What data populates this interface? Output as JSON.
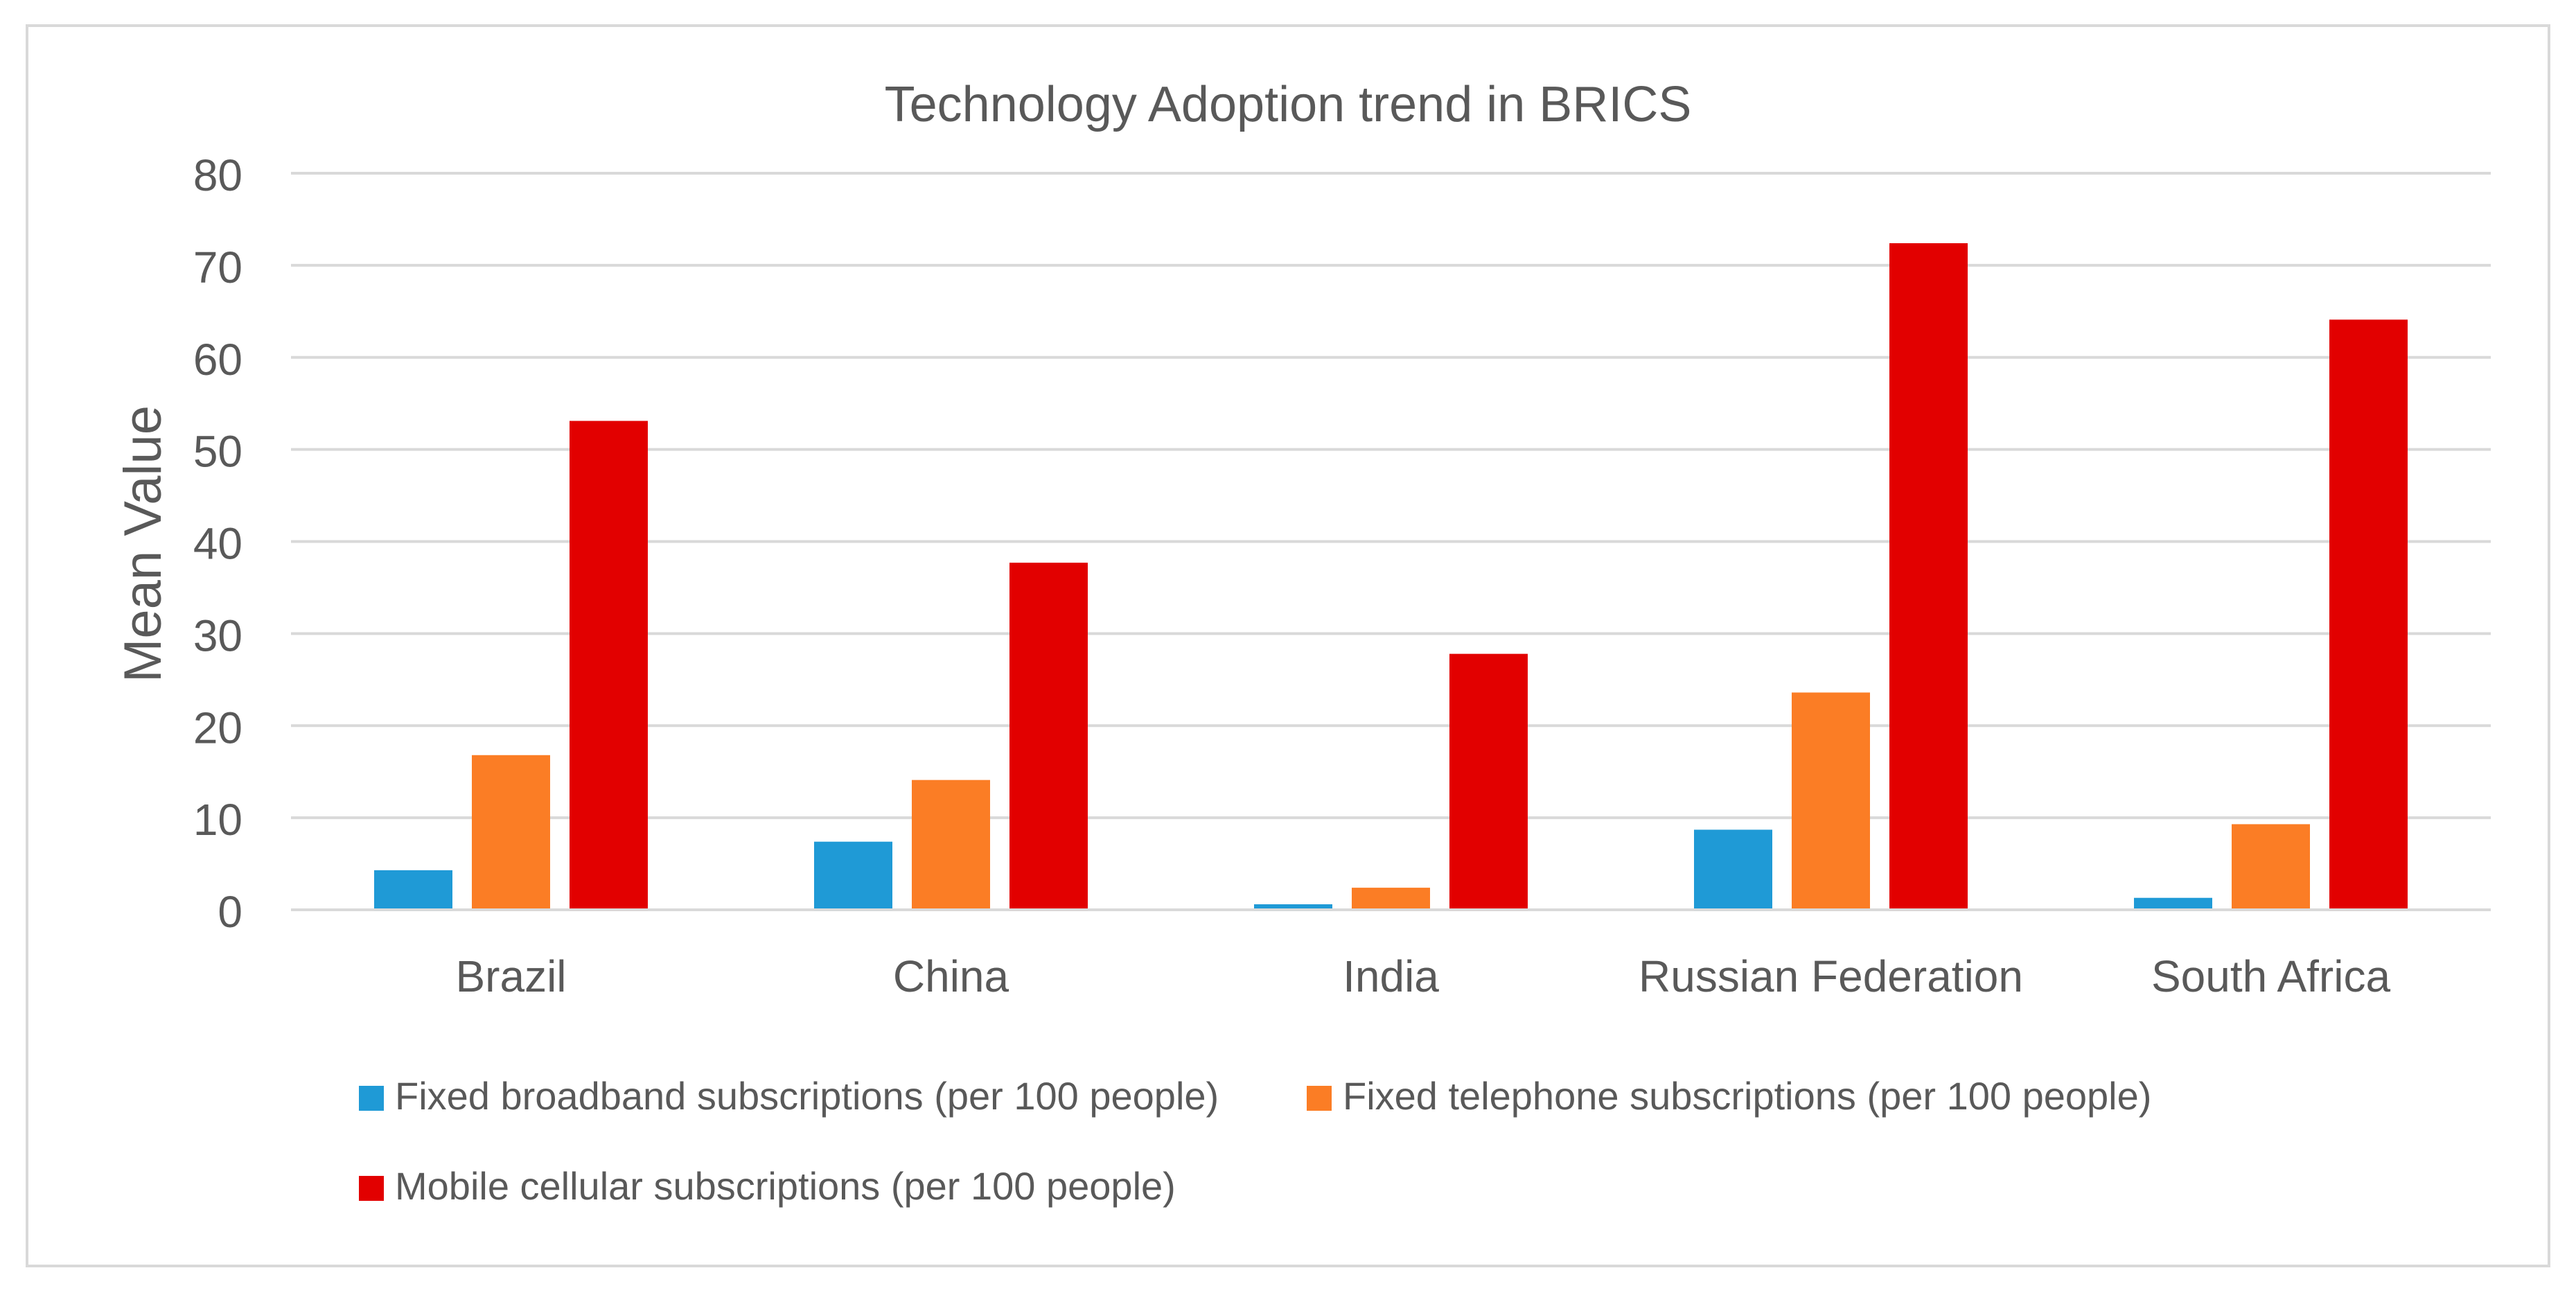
{
  "chart_data": {
    "type": "bar",
    "title": "Technology Adoption trend in BRICS",
    "xlabel": "",
    "ylabel": "Mean Value",
    "ylim": [
      0,
      80
    ],
    "yticks": [
      0,
      10,
      20,
      30,
      40,
      50,
      60,
      70,
      80
    ],
    "grid": true,
    "legend_position": "bottom",
    "categories": [
      "Brazil",
      "China",
      "India",
      "Russian Federation",
      "South Africa"
    ],
    "series": [
      {
        "name": "Fixed broadband subscriptions (per 100 people)",
        "color": "#1f9ad6",
        "values": [
          4.3,
          7.4,
          0.6,
          8.7,
          1.3
        ]
      },
      {
        "name": "Fixed telephone subscriptions (per 100 people)",
        "color": "#fb7d25",
        "values": [
          16.8,
          14.1,
          2.4,
          23.6,
          9.3
        ]
      },
      {
        "name": "Mobile cellular subscriptions (per 100 people)",
        "color": "#e20000",
        "values": [
          53.1,
          37.7,
          27.8,
          72.4,
          64.1
        ]
      }
    ]
  },
  "colors": {
    "text": "#595959",
    "grid": "#d9d9d9",
    "border": "#d9d9d9"
  }
}
